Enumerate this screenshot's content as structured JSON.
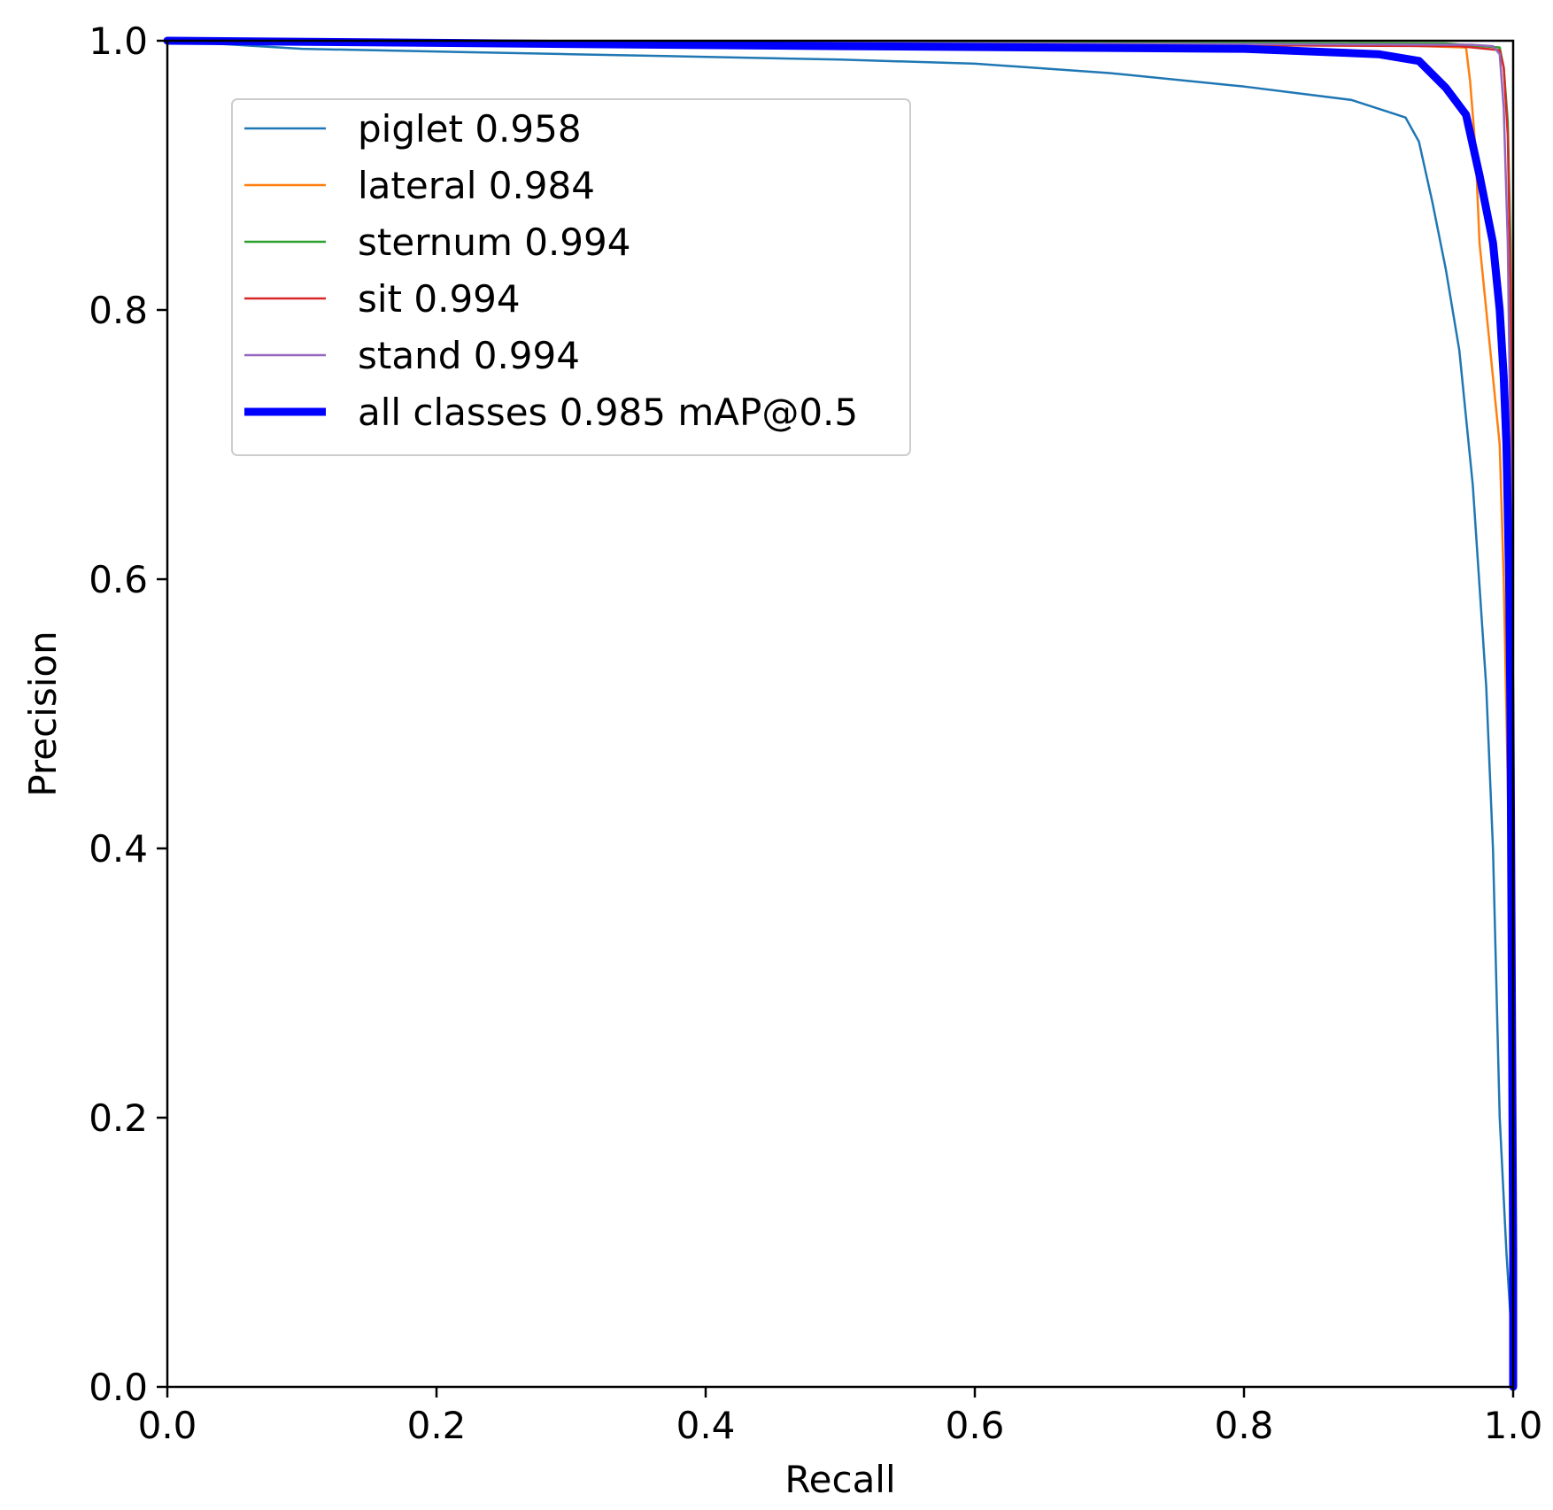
{
  "chart_data": {
    "type": "line",
    "title": "",
    "xlabel": "Recall",
    "ylabel": "Precision",
    "xlim": [
      0,
      1
    ],
    "ylim": [
      0,
      1
    ],
    "xticks": [
      "0.0",
      "0.2",
      "0.4",
      "0.6",
      "0.8",
      "1.0"
    ],
    "yticks": [
      "0.0",
      "0.2",
      "0.4",
      "0.6",
      "0.8",
      "1.0"
    ],
    "grid": false,
    "legend_position": "upper-left",
    "series": [
      {
        "name": "piglet 0.958",
        "color": "#1f77b4",
        "width": "thin",
        "points": [
          [
            0,
            1.0
          ],
          [
            0.1,
            0.994
          ],
          [
            0.3,
            0.99
          ],
          [
            0.5,
            0.986
          ],
          [
            0.6,
            0.983
          ],
          [
            0.7,
            0.976
          ],
          [
            0.8,
            0.966
          ],
          [
            0.88,
            0.956
          ],
          [
            0.92,
            0.943
          ],
          [
            0.93,
            0.925
          ],
          [
            0.94,
            0.88
          ],
          [
            0.95,
            0.83
          ],
          [
            0.96,
            0.77
          ],
          [
            0.97,
            0.67
          ],
          [
            0.98,
            0.52
          ],
          [
            0.985,
            0.4
          ],
          [
            0.99,
            0.2
          ],
          [
            0.995,
            0.1
          ],
          [
            1.0,
            0.02
          ],
          [
            1.0,
            0.0
          ]
        ]
      },
      {
        "name": "lateral 0.984",
        "color": "#ff7f0e",
        "width": "thin",
        "points": [
          [
            0,
            1.0
          ],
          [
            0.9,
            0.997
          ],
          [
            0.965,
            0.995
          ],
          [
            0.968,
            0.97
          ],
          [
            0.972,
            0.92
          ],
          [
            0.975,
            0.85
          ],
          [
            0.98,
            0.8
          ],
          [
            0.985,
            0.75
          ],
          [
            0.99,
            0.7
          ],
          [
            0.993,
            0.6
          ],
          [
            0.996,
            0.45
          ],
          [
            0.998,
            0.3
          ],
          [
            1.0,
            0.15
          ],
          [
            1.0,
            0.0
          ]
        ]
      },
      {
        "name": "sternum 0.994",
        "color": "#2ca02c",
        "width": "thin",
        "points": [
          [
            0,
            1.0
          ],
          [
            0.95,
            0.998
          ],
          [
            0.99,
            0.995
          ],
          [
            0.993,
            0.98
          ],
          [
            0.996,
            0.94
          ],
          [
            0.998,
            0.85
          ],
          [
            0.999,
            0.7
          ],
          [
            1.0,
            0.5
          ],
          [
            1.0,
            0.0
          ]
        ]
      },
      {
        "name": "sit 0.994",
        "color": "#d62728",
        "width": "thin",
        "points": [
          [
            0,
            1.0
          ],
          [
            0.96,
            0.996
          ],
          [
            0.98,
            0.994
          ],
          [
            0.99,
            0.993
          ],
          [
            0.993,
            0.98
          ],
          [
            0.996,
            0.93
          ],
          [
            0.998,
            0.82
          ],
          [
            0.999,
            0.65
          ],
          [
            1.0,
            0.4
          ],
          [
            1.0,
            0.0
          ]
        ]
      },
      {
        "name": "stand 0.994",
        "color": "#9467bd",
        "width": "thin",
        "points": [
          [
            0,
            1.0
          ],
          [
            0.97,
            0.997
          ],
          [
            0.985,
            0.996
          ],
          [
            0.99,
            0.99
          ],
          [
            0.993,
            0.95
          ],
          [
            0.996,
            0.85
          ],
          [
            0.998,
            0.7
          ],
          [
            0.999,
            0.55
          ],
          [
            1.0,
            0.3
          ],
          [
            1.0,
            0.0
          ]
        ]
      },
      {
        "name": "all classes 0.985 mAP@0.5",
        "color": "#0000ff",
        "width": "thick",
        "points": [
          [
            0,
            1.0
          ],
          [
            0.5,
            0.996
          ],
          [
            0.8,
            0.994
          ],
          [
            0.9,
            0.99
          ],
          [
            0.93,
            0.985
          ],
          [
            0.95,
            0.965
          ],
          [
            0.965,
            0.945
          ],
          [
            0.975,
            0.9
          ],
          [
            0.985,
            0.85
          ],
          [
            0.99,
            0.8
          ],
          [
            0.993,
            0.75
          ],
          [
            0.995,
            0.7
          ],
          [
            0.997,
            0.6
          ],
          [
            0.998,
            0.5
          ],
          [
            0.999,
            0.3
          ],
          [
            1.0,
            0.1
          ],
          [
            1.0,
            0.0
          ]
        ]
      }
    ]
  }
}
